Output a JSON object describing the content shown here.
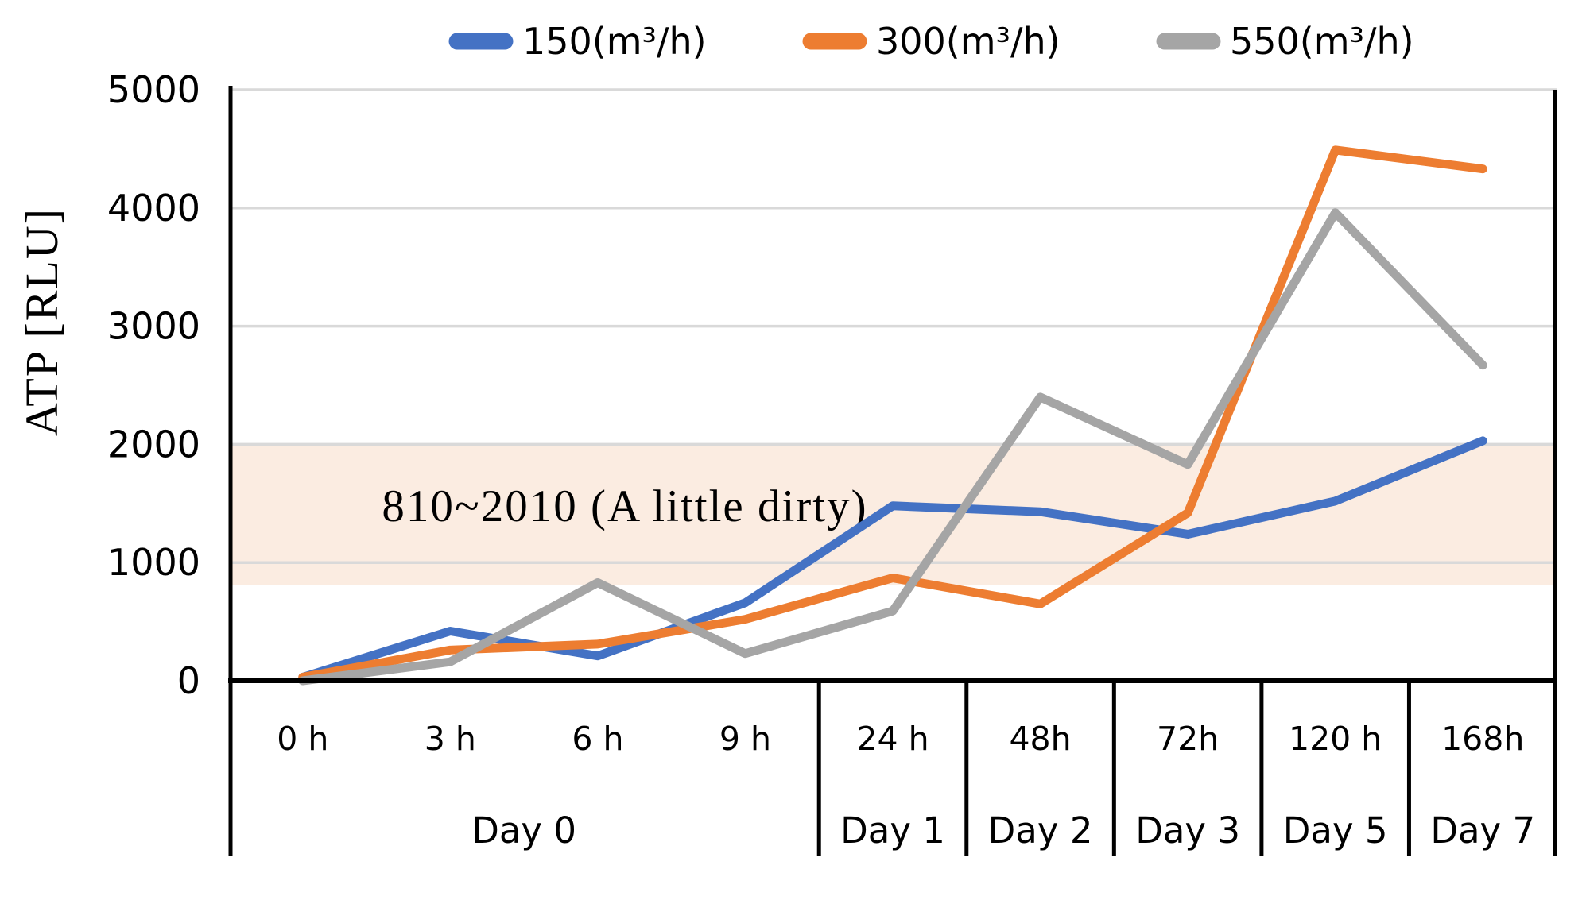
{
  "chart_data": {
    "type": "line",
    "title": "",
    "ylabel": "ATP [RLU]",
    "xlabel": "",
    "ylim": [
      0,
      5000
    ],
    "y_ticks": [
      0,
      1000,
      2000,
      3000,
      4000,
      5000
    ],
    "grid": true,
    "grid_color": "#D9D9D9",
    "axis_color": "#000000",
    "legend_position": "top",
    "categories": [
      "0 h",
      "3 h",
      "6 h",
      "9 h",
      "24 h",
      "48h",
      "72h",
      "120 h",
      "168h"
    ],
    "day_groups": [
      {
        "label": "Day 0",
        "span": 4
      },
      {
        "label": "Day 1",
        "span": 1
      },
      {
        "label": "Day 2",
        "span": 1
      },
      {
        "label": "Day 3",
        "span": 1
      },
      {
        "label": "Day 5",
        "span": 1
      },
      {
        "label": "Day 7",
        "span": 1
      }
    ],
    "series": [
      {
        "name": "150(m³/h)",
        "color": "#4472C4",
        "values": [
          30,
          420,
          210,
          660,
          1480,
          1430,
          1240,
          1520,
          2030
        ]
      },
      {
        "name": "300(m³/h)",
        "color": "#ED7D31",
        "values": [
          30,
          260,
          310,
          520,
          870,
          650,
          1420,
          4490,
          4330
        ]
      },
      {
        "name": "550(m³/h)",
        "color": "#A5A5A5",
        "values": [
          0,
          160,
          830,
          230,
          590,
          2400,
          1830,
          3960,
          2670
        ]
      }
    ],
    "reference_band": {
      "from": 810,
      "to": 2010,
      "fill": "#FBECE1",
      "label": "810~2010 (A little dirty)"
    }
  }
}
